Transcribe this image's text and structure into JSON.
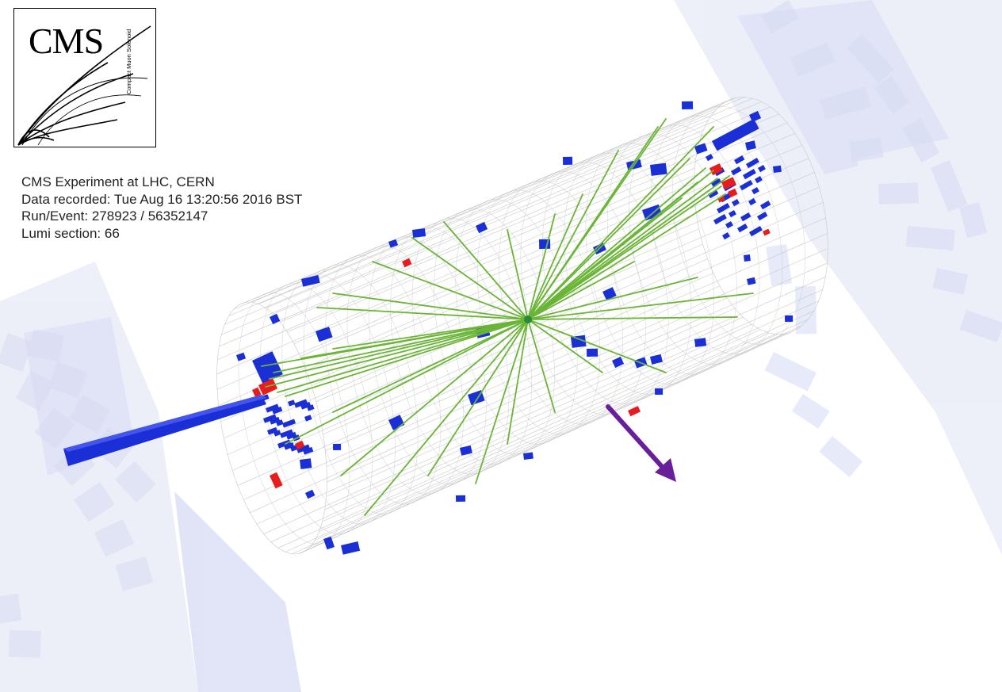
{
  "logo": {
    "title": "CMS",
    "subtitle": "Compact Muon Solenoid"
  },
  "event_info": {
    "experiment": "CMS Experiment at LHC, CERN",
    "recorded": "Data recorded: Tue Aug 16 13:20:56 2016 BST",
    "run_event": "Run/Event: 278923 / 56352147",
    "lumi": "Lumi section: 66"
  },
  "colors": {
    "background": "#ffffff",
    "detector_ghost": "#dfe2f4",
    "tracks": "#6ab536",
    "hcal": "#1b2fd6",
    "ecal": "#e81c1c",
    "met_arrow": "#6a1f9a",
    "muon": "#1b2fd6",
    "mesh": "#c8c8c8"
  },
  "icons": {
    "logo": "cms-logo-icon",
    "met": "missing-energy-arrow-icon"
  }
}
